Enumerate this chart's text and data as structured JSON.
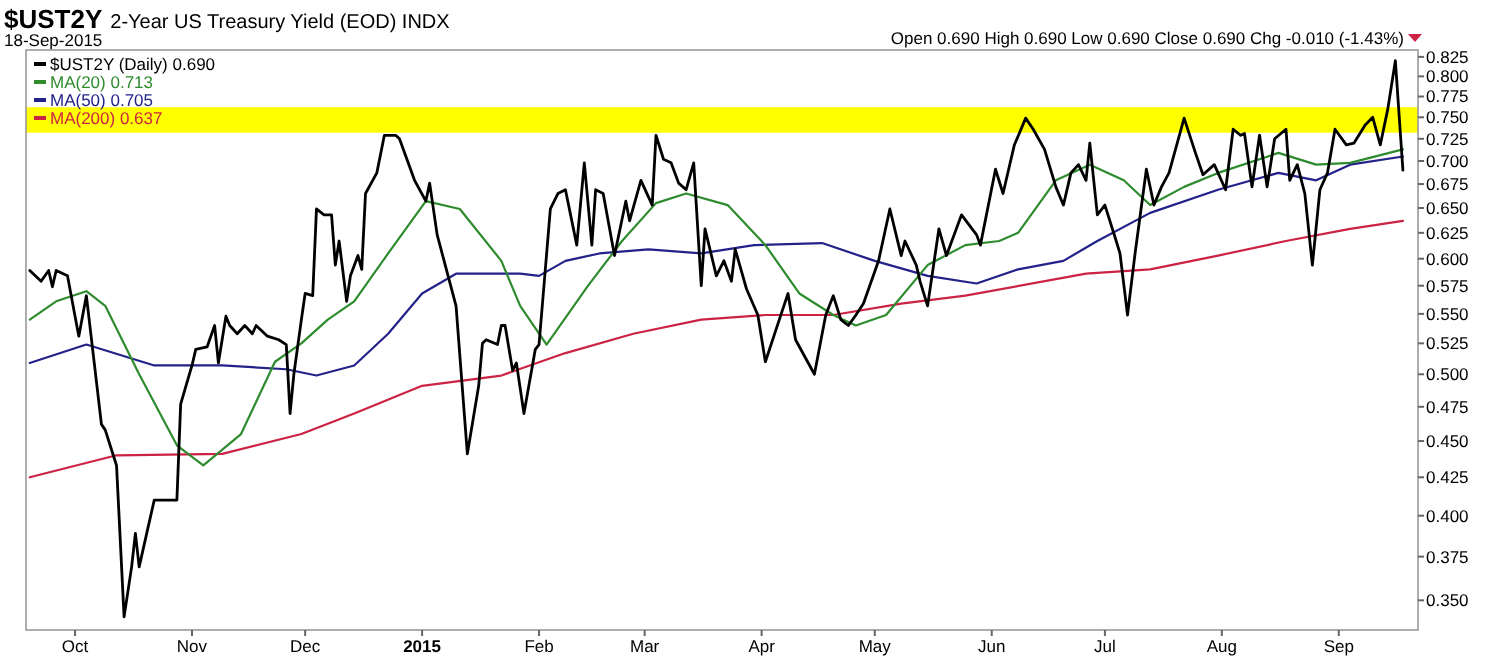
{
  "chart_data": {
    "type": "line",
    "title": "$UST2Y",
    "subtitle": "2-Year US Treasury Yield (EOD) INDX",
    "annotations": [
      "18-Sep-2015",
      "Open 0.690 High 0.690 Low 0.690 Close 0.690 Chg -0.010 (-1.43%)"
    ],
    "log": "y",
    "legend": "top left",
    "xlim": [
      "2014-09-18",
      "2015-09-22"
    ],
    "xticks": [
      {
        "value": "2014-10-01",
        "label": "Oct"
      },
      {
        "value": "2014-11-01",
        "label": "Nov"
      },
      {
        "value": "2014-12-01",
        "label": "Dec"
      },
      {
        "value": "2015-01-01",
        "label": "2015"
      },
      {
        "value": "2015-02-01",
        "label": "Feb"
      },
      {
        "value": "2015-03-01",
        "label": "Mar"
      },
      {
        "value": "2015-04-01",
        "label": "Apr"
      },
      {
        "value": "2015-05-01",
        "label": "May"
      },
      {
        "value": "2015-06-01",
        "label": "Jun"
      },
      {
        "value": "2015-07-01",
        "label": "Jul"
      },
      {
        "value": "2015-08-01",
        "label": "Aug"
      },
      {
        "value": "2015-09-01",
        "label": "Sep"
      }
    ],
    "ylim": [
      0.334,
      0.834
    ],
    "yticks": [
      {
        "value": 0.35,
        "label": "0.350"
      },
      {
        "value": 0.375,
        "label": "0.375"
      },
      {
        "value": 0.4,
        "label": "0.400"
      },
      {
        "value": 0.425,
        "label": "0.425"
      },
      {
        "value": 0.45,
        "label": "0.450"
      },
      {
        "value": 0.475,
        "label": "0.475"
      },
      {
        "value": 0.5,
        "label": "0.500"
      },
      {
        "value": 0.525,
        "label": "0.525"
      },
      {
        "value": 0.55,
        "label": "0.550"
      },
      {
        "value": 0.575,
        "label": "0.575"
      },
      {
        "value": 0.6,
        "label": "0.600"
      },
      {
        "value": 0.625,
        "label": "0.625"
      },
      {
        "value": 0.65,
        "label": "0.650"
      },
      {
        "value": 0.675,
        "label": "0.675"
      },
      {
        "value": 0.7,
        "label": "0.700"
      },
      {
        "value": 0.725,
        "label": "0.725"
      },
      {
        "value": 0.75,
        "label": "0.750"
      },
      {
        "value": 0.775,
        "label": "0.775"
      },
      {
        "value": 0.8,
        "label": "0.800"
      },
      {
        "value": 0.825,
        "label": "0.825"
      }
    ],
    "bands": [
      {
        "axis": "y",
        "from": 0.732,
        "to": 0.762,
        "color": "#ffff00"
      }
    ],
    "series": [
      {
        "name": "MA(200) 0.637",
        "color": "#cc2244",
        "x": [
          "2014-09-19",
          "2014-10-12",
          "2014-11-09",
          "2014-11-30",
          "2014-12-14",
          "2015-01-01",
          "2015-01-22",
          "2015-02-08",
          "2015-02-26",
          "2015-03-16",
          "2015-04-02",
          "2015-04-20",
          "2015-05-08",
          "2015-05-25",
          "2015-06-26",
          "2015-07-13",
          "2015-07-31",
          "2015-08-18",
          "2015-09-04",
          "2015-09-18"
        ],
        "values": [
          0.425,
          0.44,
          0.441,
          0.455,
          0.47,
          0.491,
          0.499,
          0.517,
          0.533,
          0.545,
          0.549,
          0.549,
          0.559,
          0.566,
          0.586,
          0.59,
          0.603,
          0.617,
          0.629,
          0.637
        ]
      },
      {
        "name": "MA(50) 0.705",
        "color": "#22228a",
        "x": [
          "2014-09-19",
          "2014-10-04",
          "2014-10-22",
          "2014-11-09",
          "2014-11-26",
          "2014-12-04",
          "2014-12-14",
          "2014-12-23",
          "2015-01-01",
          "2015-01-10",
          "2015-01-27",
          "2015-02-01",
          "2015-02-08",
          "2015-02-17",
          "2015-03-02",
          "2015-03-16",
          "2015-03-30",
          "2015-04-17",
          "2015-05-01",
          "2015-05-15",
          "2015-05-28",
          "2015-06-08",
          "2015-06-20",
          "2015-06-29",
          "2015-07-13",
          "2015-07-31",
          "2015-08-16",
          "2015-08-26",
          "2015-09-04",
          "2015-09-18"
        ],
        "values": [
          0.509,
          0.524,
          0.507,
          0.507,
          0.504,
          0.499,
          0.507,
          0.533,
          0.568,
          0.586,
          0.586,
          0.584,
          0.598,
          0.605,
          0.609,
          0.605,
          0.613,
          0.615,
          0.598,
          0.584,
          0.577,
          0.59,
          0.598,
          0.617,
          0.645,
          0.669,
          0.687,
          0.679,
          0.696,
          0.705
        ]
      },
      {
        "name": "MA(20) 0.713",
        "color": "#2e8b2e",
        "x": [
          "2014-09-19",
          "2014-09-26",
          "2014-10-04",
          "2014-10-09",
          "2014-10-18",
          "2014-10-28",
          "2014-11-04",
          "2014-11-14",
          "2014-11-23",
          "2014-11-30",
          "2014-12-07",
          "2014-12-14",
          "2014-12-23",
          "2015-01-02",
          "2015-01-11",
          "2015-01-22",
          "2015-01-27",
          "2015-02-03",
          "2015-02-14",
          "2015-02-23",
          "2015-03-04",
          "2015-03-12",
          "2015-03-23",
          "2015-04-02",
          "2015-04-11",
          "2015-04-20",
          "2015-04-26",
          "2015-05-04",
          "2015-05-15",
          "2015-05-25",
          "2015-06-03",
          "2015-06-08",
          "2015-06-18",
          "2015-06-27",
          "2015-07-06",
          "2015-07-13",
          "2015-07-22",
          "2015-07-31",
          "2015-08-16",
          "2015-08-26",
          "2015-09-04",
          "2015-09-18"
        ],
        "values": [
          0.545,
          0.561,
          0.57,
          0.557,
          0.5,
          0.447,
          0.433,
          0.455,
          0.51,
          0.525,
          0.545,
          0.561,
          0.605,
          0.657,
          0.649,
          0.598,
          0.557,
          0.524,
          0.575,
          0.617,
          0.655,
          0.665,
          0.653,
          0.613,
          0.568,
          0.549,
          0.54,
          0.549,
          0.594,
          0.613,
          0.617,
          0.625,
          0.679,
          0.696,
          0.679,
          0.653,
          0.672,
          0.687,
          0.709,
          0.696,
          0.698,
          0.713
        ]
      },
      {
        "name": "$UST2Y (Daily) 0.690",
        "color": "#000000",
        "x": [
          "2014-09-19",
          "2014-09-22",
          "2014-09-24",
          "2014-09-25",
          "2014-09-26",
          "2014-09-29",
          "2014-10-01",
          "2014-10-02",
          "2014-10-04",
          "2014-10-08",
          "2014-10-09",
          "2014-10-12",
          "2014-10-14",
          "2014-10-16",
          "2014-10-17",
          "2014-10-18",
          "2014-10-20",
          "2014-10-22",
          "2014-10-25",
          "2014-10-28",
          "2014-10-29",
          "2014-11-01",
          "2014-11-02",
          "2014-11-05",
          "2014-11-07",
          "2014-11-08",
          "2014-11-10",
          "2014-11-11",
          "2014-11-13",
          "2014-11-15",
          "2014-11-17",
          "2014-11-18",
          "2014-11-21",
          "2014-11-24",
          "2014-11-26",
          "2014-11-27",
          "2014-11-28",
          "2014-11-30",
          "2014-12-01",
          "2014-12-03",
          "2014-12-04",
          "2014-12-06",
          "2014-12-08",
          "2014-12-09",
          "2014-12-10",
          "2014-12-12",
          "2014-12-13",
          "2014-12-15",
          "2014-12-16",
          "2014-12-17",
          "2014-12-20",
          "2014-12-22",
          "2014-12-25",
          "2014-12-26",
          "2014-12-30",
          "2015-01-02",
          "2015-01-03",
          "2015-01-05",
          "2015-01-10",
          "2015-01-13",
          "2015-01-16",
          "2015-01-17",
          "2015-01-18",
          "2015-01-21",
          "2015-01-22",
          "2015-01-23",
          "2015-01-25",
          "2015-01-26",
          "2015-01-28",
          "2015-01-31",
          "2015-02-01",
          "2015-02-04",
          "2015-02-06",
          "2015-02-08",
          "2015-02-11",
          "2015-02-13",
          "2015-02-15",
          "2015-02-16",
          "2015-02-18",
          "2015-02-21",
          "2015-02-24",
          "2015-02-25",
          "2015-02-28",
          "2015-03-03",
          "2015-03-04",
          "2015-03-06",
          "2015-03-08",
          "2015-03-10",
          "2015-03-12",
          "2015-03-14",
          "2015-03-16",
          "2015-03-17",
          "2015-03-20",
          "2015-03-22",
          "2015-03-24",
          "2015-03-25",
          "2015-03-28",
          "2015-03-31",
          "2015-04-02",
          "2015-04-06",
          "2015-04-08",
          "2015-04-10",
          "2015-04-15",
          "2015-04-18",
          "2015-04-20",
          "2015-04-22",
          "2015-04-24",
          "2015-04-26",
          "2015-04-28",
          "2015-05-02",
          "2015-05-05",
          "2015-05-08",
          "2015-05-09",
          "2015-05-12",
          "2015-05-13",
          "2015-05-15",
          "2015-05-18",
          "2015-05-20",
          "2015-05-24",
          "2015-05-28",
          "2015-05-29",
          "2015-06-02",
          "2015-06-04",
          "2015-06-07",
          "2015-06-10",
          "2015-06-12",
          "2015-06-15",
          "2015-06-18",
          "2015-06-20",
          "2015-06-22",
          "2015-06-24",
          "2015-06-26",
          "2015-06-27",
          "2015-06-29",
          "2015-07-01",
          "2015-07-04",
          "2015-07-05",
          "2015-07-07",
          "2015-07-09",
          "2015-07-12",
          "2015-07-14",
          "2015-07-16",
          "2015-07-18",
          "2015-07-22",
          "2015-07-25",
          "2015-07-27",
          "2015-07-30",
          "2015-08-02",
          "2015-08-04",
          "2015-08-06",
          "2015-08-07",
          "2015-08-09",
          "2015-08-11",
          "2015-08-13",
          "2015-08-15",
          "2015-08-18",
          "2015-08-19",
          "2015-08-21",
          "2015-08-23",
          "2015-08-25",
          "2015-08-27",
          "2015-08-29",
          "2015-08-31",
          "2015-09-03",
          "2015-09-05",
          "2015-09-08",
          "2015-09-10",
          "2015-09-12",
          "2015-09-14",
          "2015-09-16",
          "2015-09-18"
        ],
        "values": [
          0.589,
          0.579,
          0.589,
          0.574,
          0.589,
          0.584,
          0.548,
          0.531,
          0.566,
          0.462,
          0.458,
          0.433,
          0.341,
          0.369,
          0.389,
          0.369,
          0.389,
          0.41,
          0.41,
          0.41,
          0.477,
          0.507,
          0.52,
          0.522,
          0.54,
          0.509,
          0.548,
          0.54,
          0.533,
          0.54,
          0.533,
          0.54,
          0.531,
          0.528,
          0.524,
          0.47,
          0.5,
          0.545,
          0.568,
          0.566,
          0.649,
          0.643,
          0.643,
          0.594,
          0.617,
          0.561,
          0.584,
          0.603,
          0.59,
          0.665,
          0.687,
          0.729,
          0.729,
          0.725,
          0.679,
          0.657,
          0.676,
          0.623,
          0.557,
          0.441,
          0.491,
          0.525,
          0.528,
          0.524,
          0.54,
          0.54,
          0.503,
          0.509,
          0.47,
          0.52,
          0.524,
          0.649,
          0.665,
          0.669,
          0.613,
          0.698,
          0.613,
          0.669,
          0.665,
          0.603,
          0.657,
          0.637,
          0.679,
          0.653,
          0.729,
          0.702,
          0.698,
          0.676,
          0.669,
          0.698,
          0.575,
          0.629,
          0.584,
          0.598,
          0.579,
          0.609,
          0.572,
          0.549,
          0.51,
          0.548,
          0.568,
          0.528,
          0.5,
          0.549,
          0.566,
          0.545,
          0.54,
          0.549,
          0.559,
          0.598,
          0.649,
          0.603,
          0.617,
          0.594,
          0.579,
          0.557,
          0.629,
          0.603,
          0.643,
          0.623,
          0.613,
          0.691,
          0.665,
          0.718,
          0.749,
          0.736,
          0.713,
          0.672,
          0.653,
          0.687,
          0.696,
          0.679,
          0.72,
          0.643,
          0.653,
          0.617,
          0.605,
          0.549,
          0.605,
          0.691,
          0.653,
          0.672,
          0.687,
          0.749,
          0.709,
          0.685,
          0.696,
          0.669,
          0.736,
          0.729,
          0.731,
          0.672,
          0.729,
          0.672,
          0.725,
          0.736,
          0.679,
          0.696,
          0.665,
          0.594,
          0.669,
          0.687,
          0.736,
          0.718,
          0.72,
          0.741,
          0.75,
          0.718,
          0.76,
          0.82,
          0.69
        ]
      }
    ]
  }
}
